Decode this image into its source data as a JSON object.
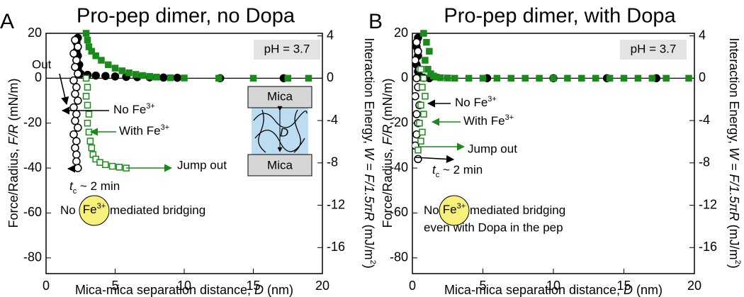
{
  "chart_data": [
    {
      "type": "scatter",
      "panel": "A",
      "title": "Pro-pep dimer, no Dopa",
      "xlabel": [
        "Mica-mica separation distance, ",
        "D",
        " (nm)"
      ],
      "ylabel": [
        "Force/Radius, ",
        "F/R",
        " (mN/m)"
      ],
      "y2label": [
        "Interaction Energy, ",
        "W = F/1.5πR",
        " (mJ/m",
        "2",
        ")"
      ],
      "xlim": [
        0,
        20
      ],
      "xticks": [
        0,
        5,
        10,
        15,
        20
      ],
      "ylim": [
        -87,
        20
      ],
      "yticks": [
        20,
        0,
        -20,
        -40,
        -60,
        -80
      ],
      "y2lim": [
        -18.46,
        4.244
      ],
      "y2ticks": [
        4,
        0,
        -4,
        -8,
        -12,
        -16
      ],
      "series": [
        {
          "color": "#000000",
          "marker": "circle",
          "filled": true,
          "x": [
            2.3,
            2.2,
            2.3,
            2.2,
            2.3,
            2.2,
            2.4,
            2.3,
            2.5,
            3.0,
            3.6,
            4.3,
            5.0,
            5.8,
            6.6,
            7.5,
            8.5,
            9.5,
            12.6,
            17.2
          ],
          "values": [
            18,
            16,
            14,
            12,
            10,
            8,
            6,
            4,
            2,
            1.5,
            1.2,
            1.0,
            0.8,
            0.6,
            0.5,
            0.4,
            0.3,
            0.2,
            0,
            0
          ]
        },
        {
          "color": "#000000",
          "marker": "circle",
          "filled": false,
          "x": [
            2.1,
            2.3,
            2.0,
            2.2,
            2.1,
            2.3,
            2.0,
            2.2,
            2.1,
            2.3,
            2.0,
            2.2,
            2.1,
            2.3,
            2.0,
            2.2,
            2.1,
            2.2,
            2.2,
            2.3
          ],
          "values": [
            17,
            14,
            11,
            8,
            5,
            2,
            -1,
            -4,
            -7,
            -10,
            -13,
            -16,
            -19,
            -22,
            -25,
            -28,
            -31,
            -34,
            -37,
            -40
          ]
        },
        {
          "color": "#1a8a1a",
          "marker": "square",
          "filled": true,
          "x": [
            2.9,
            3.0,
            3.1,
            3.3,
            3.6,
            4.0,
            4.5,
            5.0,
            5.5,
            6.0,
            6.5,
            7.0,
            7.5,
            8.0,
            9.0,
            10.0,
            12.5,
            15.0,
            17.5,
            19.0
          ],
          "values": [
            20,
            17,
            14,
            12,
            10,
            8,
            6,
            4.5,
            3.3,
            2.4,
            1.7,
            1.2,
            0.8,
            0.5,
            0.2,
            0.1,
            0,
            0,
            0,
            0
          ]
        },
        {
          "color": "#1a8a1a",
          "marker": "square",
          "filled": false,
          "x": [
            2.9,
            3.0,
            2.9,
            3.0,
            3.1,
            3.0,
            3.1,
            3.2,
            3.3,
            3.4,
            3.6,
            3.9,
            4.3,
            4.8,
            5.3,
            5.8
          ],
          "values": [
            0,
            -4,
            -8,
            -12,
            -16,
            -20,
            -24,
            -28,
            -31,
            -34,
            -36,
            -37.5,
            -38.5,
            -39.2,
            -39.6,
            -40
          ]
        }
      ],
      "annotations": {
        "ph": "pH = 3.7",
        "out": "Out",
        "no_fe": [
          "No Fe",
          "3+"
        ],
        "with_fe": [
          "With Fe",
          "3+"
        ],
        "jump_out": "Jump out",
        "tc": [
          "t",
          "c",
          " ~ 2 min"
        ],
        "bridging": [
          "No",
          "mediated bridging"
        ],
        "fe_circle": [
          "Fe",
          "3+"
        ],
        "mica_top": "Mica",
        "mica_bottom": "Mica",
        "gap": "D"
      }
    },
    {
      "type": "scatter",
      "panel": "B",
      "title": "Pro-pep dimer, with Dopa",
      "xlabel": [
        "Mica-mica separation distance, ",
        "D",
        " (nm)"
      ],
      "ylabel": [
        "Force/Radius, ",
        "F/R",
        " (mN/m)"
      ],
      "y2label": [
        "Interaction Energy, ",
        "W = F/1.5πR",
        " (mJ/m",
        "2",
        ")"
      ],
      "xlim": [
        0,
        20
      ],
      "xticks": [
        0,
        5,
        10,
        15,
        20
      ],
      "ylim": [
        -87,
        20
      ],
      "yticks": [
        20,
        0,
        -20,
        -40,
        -60,
        -80
      ],
      "y2lim": [
        -18.46,
        4.244
      ],
      "y2ticks": [
        4,
        0,
        -4,
        -8,
        -12,
        -16
      ],
      "series": [
        {
          "color": "#000000",
          "marker": "circle",
          "filled": true,
          "x": [
            0.4,
            0.3,
            0.4,
            0.3,
            0.4,
            0.5,
            0.6,
            0.8,
            1.2,
            5.3,
            10.0,
            13.8,
            17.3
          ],
          "values": [
            18,
            14,
            10,
            6,
            3,
            1,
            0.5,
            0.2,
            0,
            0,
            0,
            0,
            0
          ]
        },
        {
          "color": "#000000",
          "marker": "circle",
          "filled": false,
          "x": [
            0.3,
            0.4,
            0.2,
            0.5,
            0.3,
            0.4,
            0.2,
            0.5,
            0.3,
            0.4,
            0.3,
            0.2,
            0.4
          ],
          "values": [
            16,
            12,
            8,
            4,
            0,
            -4,
            -8,
            -12,
            -16,
            -20,
            -25,
            -30,
            -36
          ]
        },
        {
          "color": "#1a8a1a",
          "marker": "square",
          "filled": true,
          "x": [
            0.8,
            1.0,
            1.2,
            0.9,
            1.1,
            1.3,
            1.5,
            1.7,
            2.0,
            2.5,
            3,
            4,
            5,
            6,
            7,
            8,
            9,
            10,
            11,
            12,
            13,
            14,
            15,
            16,
            17,
            18,
            19.6
          ],
          "values": [
            20,
            16,
            12,
            8,
            4,
            2,
            1,
            0.5,
            0.2,
            0.1,
            0,
            0,
            0,
            0,
            0,
            0,
            0,
            0,
            0,
            0,
            0,
            0,
            0,
            0,
            0,
            0,
            0
          ]
        },
        {
          "color": "#1a8a1a",
          "marker": "square",
          "filled": false,
          "x": [
            0.6,
            0.8,
            0.7,
            0.9,
            0.6,
            0.8,
            0.5,
            0.7,
            0.6,
            0.4
          ],
          "values": [
            4,
            0,
            -4,
            -8,
            -12,
            -16,
            -20,
            -24,
            -28,
            -32
          ]
        }
      ],
      "annotations": {
        "ph": "pH = 3.7",
        "no_fe": [
          "No Fe",
          "3+"
        ],
        "with_fe": [
          "With Fe",
          "3+"
        ],
        "jump_out": "Jump out",
        "tc": [
          "t",
          "c",
          " ~ 2 min"
        ],
        "bridging": [
          "No",
          "mediated bridging"
        ],
        "fe_circle": [
          "Fe",
          "3+"
        ],
        "bridging_2": "even with Dopa in the pep"
      }
    }
  ]
}
